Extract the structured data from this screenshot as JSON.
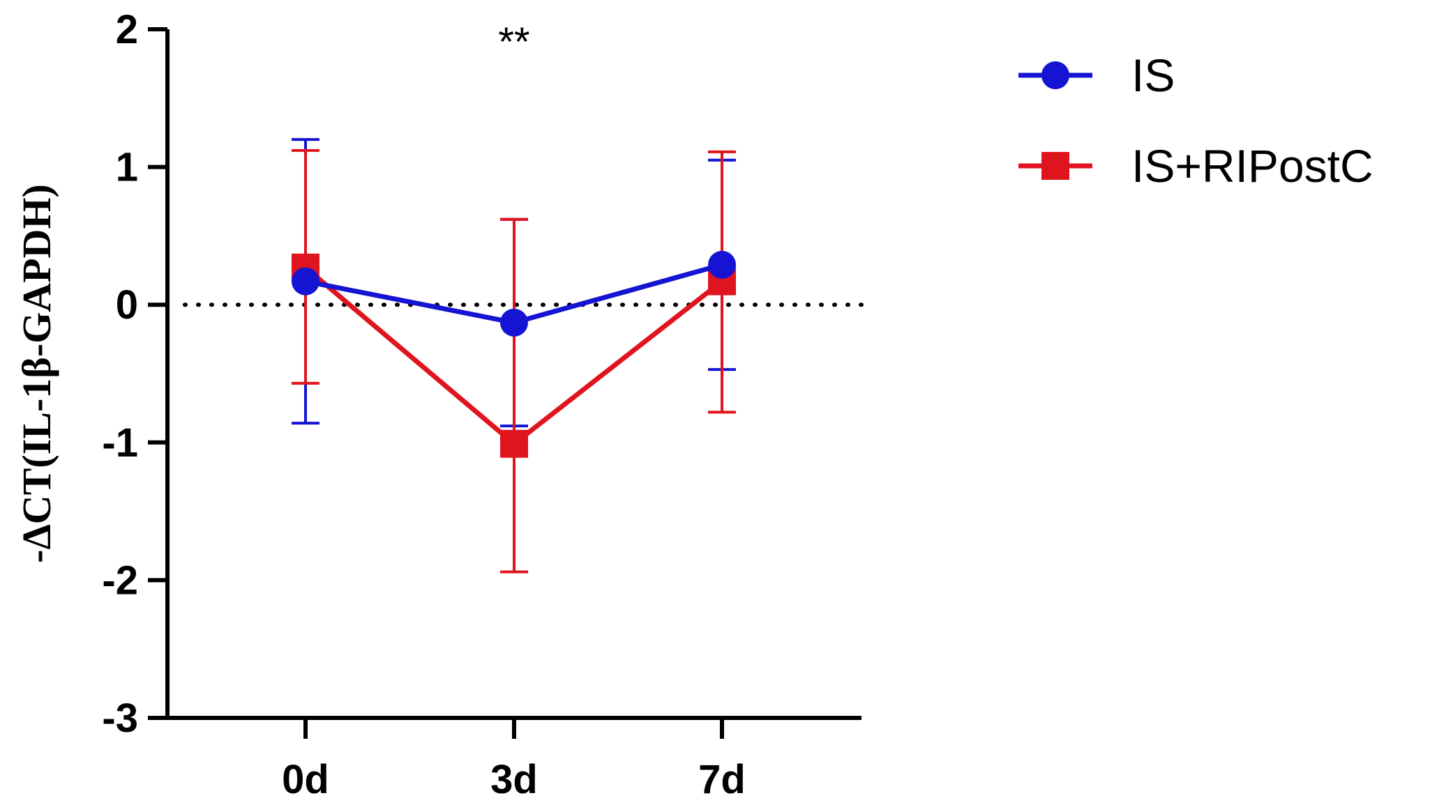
{
  "chart_data": {
    "type": "line",
    "title": "",
    "xlabel": "",
    "ylabel": "-ΔCT(IL-1β-GAPDH)",
    "categories": [
      "0d",
      "3d",
      "7d"
    ],
    "ylim": [
      -3,
      2
    ],
    "yticks": [
      "2",
      "1",
      "0",
      "-1",
      "-2",
      "-3"
    ],
    "reference_line": 0,
    "legend_position": "top-right",
    "annotations": [
      {
        "text": "**",
        "category": "3d"
      }
    ],
    "series": [
      {
        "name": "IS",
        "color": "#1414d2",
        "marker": "circle",
        "values": [
          0.17,
          -0.13,
          0.29
        ],
        "error_upper": [
          1.2,
          0.62,
          1.05
        ],
        "error_lower": [
          -0.86,
          -0.88,
          -0.47
        ]
      },
      {
        "name": "IS+RIPostC",
        "color": "#e0141e",
        "marker": "square",
        "values": [
          0.27,
          -1.01,
          0.17
        ],
        "error_upper": [
          1.12,
          0.62,
          1.11
        ],
        "error_lower": [
          -0.57,
          -1.94,
          -0.78
        ]
      }
    ]
  }
}
